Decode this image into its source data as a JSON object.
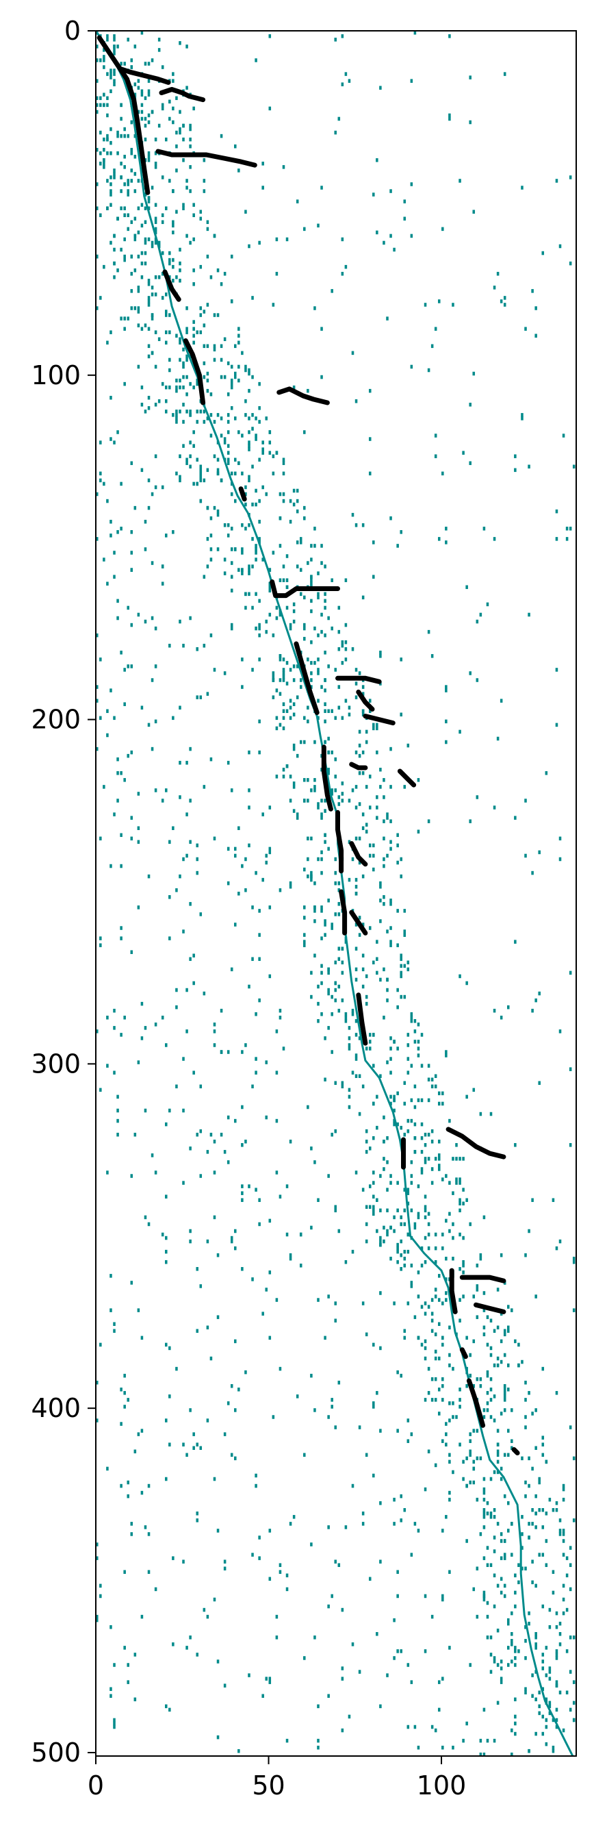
{
  "chart_data": {
    "type": "heatmap",
    "title": "",
    "xlabel": "",
    "ylabel": "",
    "xlim": [
      0,
      139
    ],
    "ylim": [
      501,
      0
    ],
    "x_ticks": [
      0,
      50,
      100
    ],
    "y_ticks": [
      0,
      100,
      200,
      300,
      400,
      500
    ],
    "x_tick_labels": [
      "0",
      "50",
      "100"
    ],
    "y_tick_labels": [
      "0",
      "100",
      "200",
      "300",
      "400",
      "500"
    ],
    "grid": false,
    "legend": "none",
    "colors": {
      "sparse_entry": "#008b8b",
      "dense_entry": "#000000",
      "background": "#ffffff",
      "frame": "#000000"
    },
    "main_path": [
      [
        0,
        0
      ],
      [
        2,
        3
      ],
      [
        4,
        6
      ],
      [
        6,
        10
      ],
      [
        8,
        14
      ],
      [
        10,
        20
      ],
      [
        11,
        26
      ],
      [
        12,
        33
      ],
      [
        13,
        40
      ],
      [
        14,
        48
      ],
      [
        16,
        55
      ],
      [
        18,
        62
      ],
      [
        20,
        70
      ],
      [
        21,
        75
      ],
      [
        22,
        80
      ],
      [
        24,
        86
      ],
      [
        26,
        92
      ],
      [
        28,
        97
      ],
      [
        30,
        102
      ],
      [
        31,
        108
      ],
      [
        33,
        113
      ],
      [
        35,
        118
      ],
      [
        37,
        124
      ],
      [
        39,
        130
      ],
      [
        41,
        135
      ],
      [
        44,
        140
      ],
      [
        47,
        148
      ],
      [
        50,
        157
      ],
      [
        52,
        164
      ],
      [
        54,
        170
      ],
      [
        56,
        176
      ],
      [
        58,
        182
      ],
      [
        60,
        188
      ],
      [
        62,
        194
      ],
      [
        64,
        199
      ],
      [
        65,
        205
      ],
      [
        66,
        210
      ],
      [
        67,
        216
      ],
      [
        68,
        222
      ],
      [
        70,
        228
      ],
      [
        70,
        236
      ],
      [
        71,
        244
      ],
      [
        72,
        252
      ],
      [
        72,
        260
      ],
      [
        73,
        268
      ],
      [
        74,
        276
      ],
      [
        75,
        282
      ],
      [
        76,
        288
      ],
      [
        77,
        294
      ],
      [
        78,
        299
      ],
      [
        82,
        304
      ],
      [
        86,
        314
      ],
      [
        88,
        322
      ],
      [
        89,
        328
      ],
      [
        90,
        340
      ],
      [
        91,
        350
      ],
      [
        95,
        355
      ],
      [
        100,
        360
      ],
      [
        102,
        365
      ],
      [
        103,
        372
      ],
      [
        104,
        378
      ],
      [
        106,
        384
      ],
      [
        108,
        392
      ],
      [
        110,
        400
      ],
      [
        112,
        408
      ],
      [
        114,
        415
      ],
      [
        118,
        420
      ],
      [
        122,
        428
      ],
      [
        123,
        440
      ],
      [
        123,
        448
      ],
      [
        124,
        460
      ],
      [
        126,
        470
      ],
      [
        128,
        478
      ],
      [
        130,
        485
      ],
      [
        133,
        491
      ],
      [
        136,
        497
      ],
      [
        138,
        501
      ]
    ],
    "dense_strokes": [
      [
        [
          1,
          2
        ],
        [
          3,
          5
        ],
        [
          5,
          8
        ],
        [
          7,
          11
        ],
        [
          9,
          14
        ]
      ],
      [
        [
          7,
          11
        ],
        [
          10,
          12
        ],
        [
          14,
          13
        ],
        [
          18,
          14
        ],
        [
          21,
          15
        ]
      ],
      [
        [
          9,
          14
        ],
        [
          11,
          20
        ],
        [
          12,
          26
        ]
      ],
      [
        [
          19,
          18
        ],
        [
          22,
          17
        ],
        [
          25,
          18
        ],
        [
          27,
          19
        ],
        [
          31,
          20
        ]
      ],
      [
        [
          12,
          26
        ],
        [
          13,
          33
        ],
        [
          14,
          40
        ],
        [
          15,
          47
        ]
      ],
      [
        [
          18,
          35
        ],
        [
          22,
          36
        ],
        [
          27,
          36
        ],
        [
          32,
          36
        ],
        [
          37,
          37
        ],
        [
          42,
          38
        ],
        [
          46,
          39
        ]
      ],
      [
        [
          20,
          70
        ],
        [
          22,
          75
        ],
        [
          24,
          78
        ]
      ],
      [
        [
          26,
          90
        ],
        [
          28,
          94
        ],
        [
          30,
          100
        ],
        [
          31,
          108
        ]
      ],
      [
        [
          53,
          105
        ],
        [
          56,
          104
        ],
        [
          60,
          106
        ],
        [
          63,
          107
        ],
        [
          67,
          108
        ]
      ],
      [
        [
          42,
          133
        ],
        [
          43,
          136
        ]
      ],
      [
        [
          51,
          160
        ],
        [
          52,
          164
        ],
        [
          55,
          164
        ],
        [
          58,
          162
        ],
        [
          70,
          162
        ]
      ],
      [
        [
          58,
          178
        ],
        [
          60,
          185
        ],
        [
          62,
          192
        ],
        [
          64,
          198
        ]
      ],
      [
        [
          70,
          188
        ],
        [
          74,
          188
        ],
        [
          78,
          188
        ],
        [
          82,
          189
        ]
      ],
      [
        [
          76,
          192
        ],
        [
          78,
          195
        ],
        [
          80,
          197
        ]
      ],
      [
        [
          78,
          199
        ],
        [
          82,
          200
        ],
        [
          86,
          201
        ]
      ],
      [
        [
          66,
          208
        ],
        [
          66,
          215
        ],
        [
          67,
          222
        ],
        [
          68,
          226
        ]
      ],
      [
        [
          74,
          213
        ],
        [
          76,
          214
        ],
        [
          78,
          214
        ]
      ],
      [
        [
          88,
          215
        ],
        [
          90,
          217
        ],
        [
          92,
          219
        ]
      ],
      [
        [
          70,
          227
        ],
        [
          70,
          232
        ],
        [
          71,
          238
        ],
        [
          71,
          244
        ]
      ],
      [
        [
          74,
          236
        ],
        [
          76,
          240
        ],
        [
          78,
          242
        ]
      ],
      [
        [
          71,
          250
        ],
        [
          72,
          256
        ],
        [
          72,
          262
        ]
      ],
      [
        [
          74,
          256
        ],
        [
          76,
          259
        ],
        [
          78,
          262
        ]
      ],
      [
        [
          76,
          280
        ],
        [
          77,
          288
        ],
        [
          78,
          294
        ]
      ],
      [
        [
          89,
          322
        ],
        [
          89,
          326
        ],
        [
          89,
          330
        ]
      ],
      [
        [
          102,
          319
        ],
        [
          106,
          321
        ],
        [
          110,
          324
        ],
        [
          114,
          326
        ],
        [
          118,
          327
        ]
      ],
      [
        [
          103,
          360
        ],
        [
          103,
          366
        ],
        [
          104,
          372
        ]
      ],
      [
        [
          106,
          362
        ],
        [
          110,
          362
        ],
        [
          114,
          362
        ],
        [
          118,
          363
        ]
      ],
      [
        [
          110,
          370
        ],
        [
          114,
          371
        ],
        [
          118,
          372
        ]
      ],
      [
        [
          106,
          383
        ],
        [
          107,
          385
        ]
      ],
      [
        [
          108,
          392
        ],
        [
          110,
          398
        ],
        [
          112,
          405
        ]
      ],
      [
        [
          121,
          412
        ],
        [
          122,
          413
        ]
      ]
    ]
  }
}
